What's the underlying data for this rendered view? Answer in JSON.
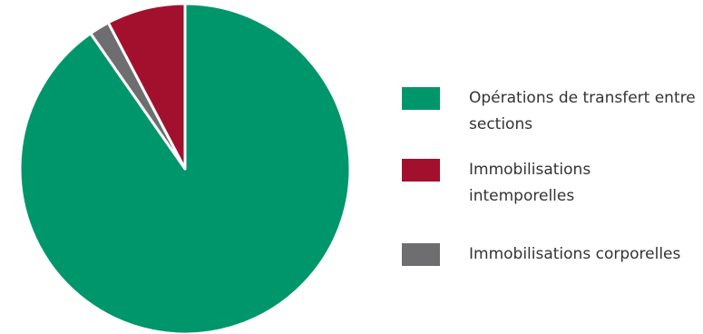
{
  "chart_data": {
    "type": "pie",
    "title": "",
    "slices": [
      {
        "label": "Opérations de transfert entre sections",
        "value": 90.3,
        "color": "#00966b"
      },
      {
        "label": "Immobilisations corporelles",
        "value": 2.0,
        "color": "#6e6e71"
      },
      {
        "label": "Immobilisations intemporelles",
        "value": 7.7,
        "color": "#a3102d"
      }
    ],
    "legend_position": "right"
  },
  "legend": [
    {
      "label": "Opérations de transfert entre sections",
      "color": "#00966b"
    },
    {
      "label": "Immobilisations intemporelles",
      "color": "#a3102d"
    },
    {
      "label": "Immobilisations corporelles",
      "color": "#6e6e71"
    }
  ]
}
